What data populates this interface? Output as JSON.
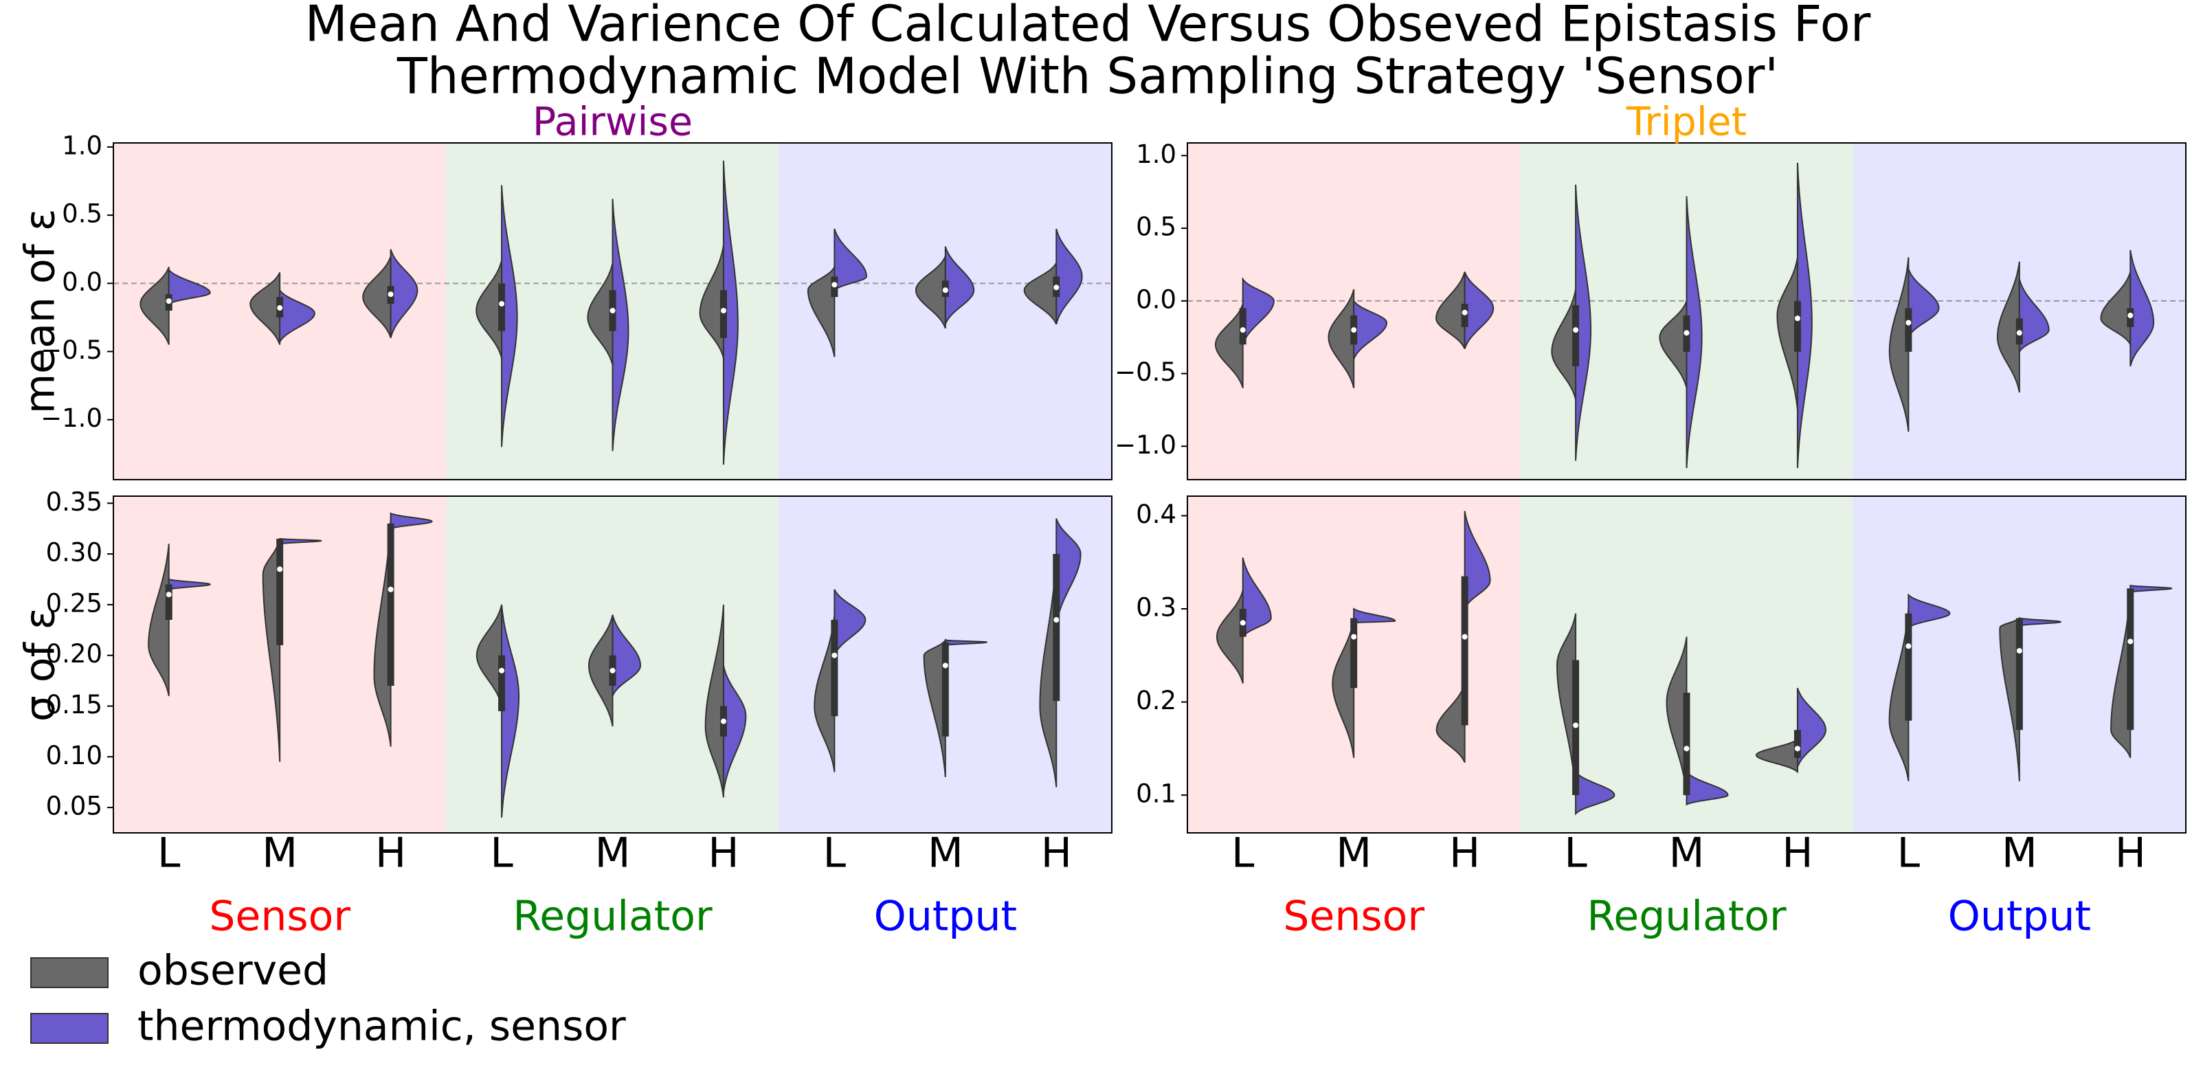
{
  "title": [
    "Mean And Varience Of Calculated Versus Obseved Epistasis For",
    "Thermodynamic Model With Sampling Strategy 'Sensor'"
  ],
  "chart_data": [
    {
      "type": "violin",
      "title": "Pairwise",
      "title_color": "purple",
      "ylabel": "mean of ε",
      "group_colors": [
        "red",
        "green",
        "blue"
      ],
      "reference_line": 0,
      "ylim": [
        -1.44,
        1.03
      ],
      "yticks": [
        {
          "value": -1.0,
          "label": "−1.0"
        },
        {
          "value": -0.5,
          "label": "−0.5"
        },
        {
          "value": 0,
          "label": "0.0"
        },
        {
          "value": 0.5,
          "label": "0.5"
        },
        {
          "value": 1.0,
          "label": "1.0"
        }
      ],
      "series": [
        {
          "name": "observed",
          "color": "#696969",
          "values": [
            [
              -0.45,
              -0.15,
              0.12
            ],
            [
              -0.45,
              -0.15,
              0.08
            ],
            [
              -0.4,
              -0.1,
              0.2
            ],
            [
              -0.55,
              -0.2,
              0.17
            ],
            [
              -0.6,
              -0.25,
              0.15
            ],
            [
              -0.55,
              -0.22,
              0.28
            ],
            [
              -0.54,
              -0.05,
              0.12
            ],
            [
              -0.33,
              -0.05,
              0.2
            ],
            [
              -0.3,
              -0.05,
              0.15
            ]
          ]
        },
        {
          "name": "thermodynamic, sensor",
          "color": "#6a5acd",
          "values": [
            [
              -0.15,
              -0.07,
              0.1
            ],
            [
              -0.43,
              -0.22,
              -0.05
            ],
            [
              -0.4,
              -0.05,
              0.25
            ],
            [
              -1.2,
              -0.25,
              0.72
            ],
            [
              -1.23,
              -0.35,
              0.62
            ],
            [
              -1.33,
              -0.3,
              0.9
            ],
            [
              -0.05,
              0.05,
              0.4
            ],
            [
              -0.3,
              -0.05,
              0.27
            ],
            [
              -0.3,
              0.05,
              0.4
            ]
          ]
        }
      ],
      "boxes": [
        [
          -0.2,
          -0.13,
          -0.08
        ],
        [
          -0.25,
          -0.18,
          -0.1
        ],
        [
          -0.15,
          -0.08,
          -0.02
        ],
        [
          -0.35,
          -0.15,
          0.0
        ],
        [
          -0.35,
          -0.2,
          -0.05
        ],
        [
          -0.4,
          -0.2,
          -0.05
        ],
        [
          -0.1,
          -0.01,
          0.05
        ],
        [
          -0.1,
          -0.05,
          0.02
        ],
        [
          -0.1,
          -0.03,
          0.05
        ]
      ]
    },
    {
      "type": "violin",
      "title": "Triplet",
      "title_color": "orange",
      "group_colors": [
        "red",
        "green",
        "blue"
      ],
      "reference_line": 0,
      "ylim": [
        -1.23,
        1.087
      ],
      "yticks": [
        {
          "value": -1.0,
          "label": "−1.0"
        },
        {
          "value": -0.5,
          "label": "−0.5"
        },
        {
          "value": 0,
          "label": "0.0"
        },
        {
          "value": 0.5,
          "label": "0.5"
        },
        {
          "value": 1.0,
          "label": "1.0"
        }
      ],
      "series": [
        {
          "name": "observed",
          "color": "#696969",
          "values": [
            [
              -0.6,
              -0.3,
              -0.02
            ],
            [
              -0.6,
              -0.25,
              0.08
            ],
            [
              -0.33,
              -0.12,
              0.2
            ],
            [
              -0.68,
              -0.35,
              0.08
            ],
            [
              -0.6,
              -0.25,
              0.0
            ],
            [
              -0.75,
              -0.1,
              0.3
            ],
            [
              -0.9,
              -0.35,
              0.3
            ],
            [
              -0.63,
              -0.25,
              0.27
            ],
            [
              -0.3,
              -0.12,
              0.2
            ]
          ]
        },
        {
          "name": "thermodynamic, sensor",
          "color": "#6a5acd",
          "values": [
            [
              -0.3,
              0.0,
              0.15
            ],
            [
              -0.4,
              -0.15,
              0.0
            ],
            [
              -0.33,
              -0.05,
              0.2
            ],
            [
              -1.1,
              -0.2,
              0.8
            ],
            [
              -1.15,
              -0.25,
              0.72
            ],
            [
              -1.15,
              -0.15,
              0.95
            ],
            [
              -0.25,
              -0.05,
              0.22
            ],
            [
              -0.35,
              -0.2,
              0.15
            ],
            [
              -0.45,
              -0.15,
              0.35
            ]
          ]
        }
      ],
      "boxes": [
        [
          -0.3,
          -0.2,
          -0.05
        ],
        [
          -0.3,
          -0.2,
          -0.1
        ],
        [
          -0.18,
          -0.08,
          -0.02
        ],
        [
          -0.45,
          -0.2,
          -0.03
        ],
        [
          -0.35,
          -0.22,
          -0.1
        ],
        [
          -0.35,
          -0.12,
          0.0
        ],
        [
          -0.35,
          -0.15,
          -0.05
        ],
        [
          -0.3,
          -0.22,
          -0.12
        ],
        [
          -0.18,
          -0.1,
          -0.05
        ]
      ]
    },
    {
      "type": "violin",
      "ylabel": "σ of ε",
      "categories": [
        "L",
        "M",
        "H",
        "L",
        "M",
        "H",
        "L",
        "M",
        "H"
      ],
      "groups": [
        "Sensor",
        "Regulator",
        "Output"
      ],
      "group_colors": [
        "red",
        "green",
        "blue"
      ],
      "ylim": [
        0.025,
        0.357
      ],
      "yticks": [
        0.05,
        {
          "value": 0.1,
          "label": "0.10"
        },
        0.15,
        {
          "value": 0.2,
          "label": "0.20"
        },
        0.25,
        {
          "value": 0.3,
          "label": "0.30"
        },
        0.35
      ],
      "series": [
        {
          "name": "observed",
          "color": "#696969",
          "values": [
            [
              0.16,
              0.21,
              0.31
            ],
            [
              0.095,
              0.28,
              0.315
            ],
            [
              0.11,
              0.18,
              0.335
            ],
            [
              0.15,
              0.2,
              0.25
            ],
            [
              0.13,
              0.19,
              0.24
            ],
            [
              0.06,
              0.13,
              0.25
            ],
            [
              0.085,
              0.15,
              0.24
            ],
            [
              0.08,
              0.2,
              0.215
            ],
            [
              0.07,
              0.15,
              0.3
            ]
          ]
        },
        {
          "name": "thermodynamic, sensor",
          "color": "#6a5acd",
          "values": [
            [
              0.265,
              0.27,
              0.275
            ],
            [
              0.31,
              0.313,
              0.315
            ],
            [
              0.325,
              0.332,
              0.34
            ],
            [
              0.04,
              0.16,
              0.25
            ],
            [
              0.16,
              0.19,
              0.24
            ],
            [
              0.065,
              0.14,
              0.19
            ],
            [
              0.2,
              0.235,
              0.265
            ],
            [
              0.21,
              0.213,
              0.215
            ],
            [
              0.23,
              0.3,
              0.335
            ]
          ]
        }
      ],
      "boxes": [
        [
          0.235,
          0.26,
          0.27
        ],
        [
          0.21,
          0.285,
          0.315
        ],
        [
          0.17,
          0.265,
          0.33
        ],
        [
          0.145,
          0.185,
          0.2
        ],
        [
          0.17,
          0.185,
          0.2
        ],
        [
          0.12,
          0.135,
          0.15
        ],
        [
          0.14,
          0.2,
          0.235
        ],
        [
          0.12,
          0.19,
          0.213
        ],
        [
          0.155,
          0.235,
          0.3
        ]
      ]
    },
    {
      "type": "violin",
      "categories": [
        "L",
        "M",
        "H",
        "L",
        "M",
        "H",
        "L",
        "M",
        "H"
      ],
      "groups": [
        "Sensor",
        "Regulator",
        "Output"
      ],
      "group_colors": [
        "red",
        "green",
        "blue"
      ],
      "ylim": [
        0.0595,
        0.421
      ],
      "yticks": [
        0.1,
        0.2,
        0.3,
        0.4
      ],
      "series": [
        {
          "name": "observed",
          "color": "#696969",
          "values": [
            [
              0.22,
              0.27,
              0.32
            ],
            [
              0.14,
              0.22,
              0.29
            ],
            [
              0.135,
              0.17,
              0.22
            ],
            [
              0.1,
              0.24,
              0.295
            ],
            [
              0.1,
              0.2,
              0.27
            ],
            [
              0.125,
              0.143,
              0.16
            ],
            [
              0.115,
              0.18,
              0.3
            ],
            [
              0.115,
              0.28,
              0.29
            ],
            [
              0.14,
              0.17,
              0.32
            ]
          ]
        },
        {
          "name": "thermodynamic, sensor",
          "color": "#6a5acd",
          "values": [
            [
              0.27,
              0.29,
              0.355
            ],
            [
              0.285,
              0.287,
              0.3
            ],
            [
              0.3,
              0.33,
              0.405
            ],
            [
              0.08,
              0.1,
              0.125
            ],
            [
              0.09,
              0.1,
              0.125
            ],
            [
              0.13,
              0.17,
              0.215
            ],
            [
              0.28,
              0.295,
              0.315
            ],
            [
              0.282,
              0.286,
              0.29
            ],
            [
              0.318,
              0.322,
              0.325
            ]
          ]
        }
      ],
      "boxes": [
        [
          0.27,
          0.285,
          0.3
        ],
        [
          0.215,
          0.27,
          0.29
        ],
        [
          0.175,
          0.27,
          0.335
        ],
        [
          0.1,
          0.175,
          0.245
        ],
        [
          0.1,
          0.15,
          0.21
        ],
        [
          0.14,
          0.15,
          0.17
        ],
        [
          0.18,
          0.26,
          0.295
        ],
        [
          0.17,
          0.255,
          0.29
        ],
        [
          0.17,
          0.265,
          0.322
        ]
      ]
    }
  ]
}
